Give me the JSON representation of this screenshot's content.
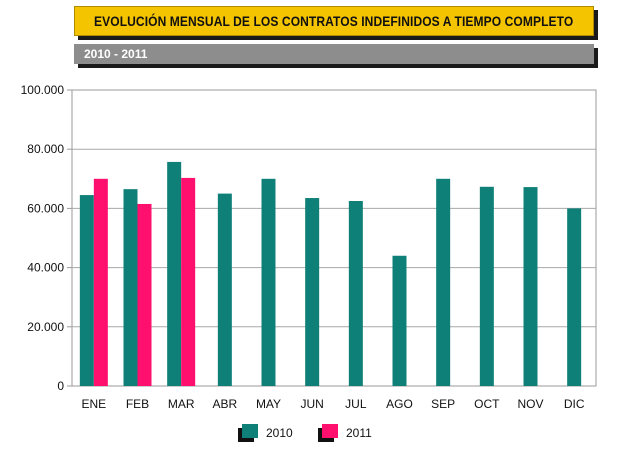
{
  "header": {
    "title": "EVOLUCIÓN MENSUAL DE LOS CONTRATOS INDEFINIDOS A TIEMPO COMPLETO",
    "subtitle": "2010 - 2011"
  },
  "colors": {
    "series_2010": "#0f8078",
    "series_2011": "#ff0f6e",
    "title_bg": "#f5c400",
    "subtitle_bg": "#8d8d8d"
  },
  "chart_data": {
    "type": "bar",
    "title": "EVOLUCIÓN MENSUAL DE LOS CONTRATOS INDEFINIDOS A TIEMPO COMPLETO",
    "subtitle": "2010 - 2011",
    "categories": [
      "ENE",
      "FEB",
      "MAR",
      "ABR",
      "MAY",
      "JUN",
      "JUL",
      "AGO",
      "SEP",
      "OCT",
      "NOV",
      "DIC"
    ],
    "series": [
      {
        "name": "2010",
        "values": [
          64500,
          66500,
          75700,
          65000,
          70000,
          63500,
          62500,
          44000,
          70000,
          67300,
          67200,
          60000
        ]
      },
      {
        "name": "2011",
        "values": [
          70000,
          61500,
          70300,
          null,
          null,
          null,
          null,
          null,
          null,
          null,
          null,
          null
        ]
      }
    ],
    "ylim": [
      0,
      100000
    ],
    "yticks": [
      0,
      20000,
      40000,
      60000,
      80000,
      100000
    ],
    "ytick_labels": [
      "0",
      "20.000",
      "40.000",
      "60.000",
      "80.000",
      "100.000"
    ],
    "grid": true,
    "legend": "bottom-center"
  }
}
